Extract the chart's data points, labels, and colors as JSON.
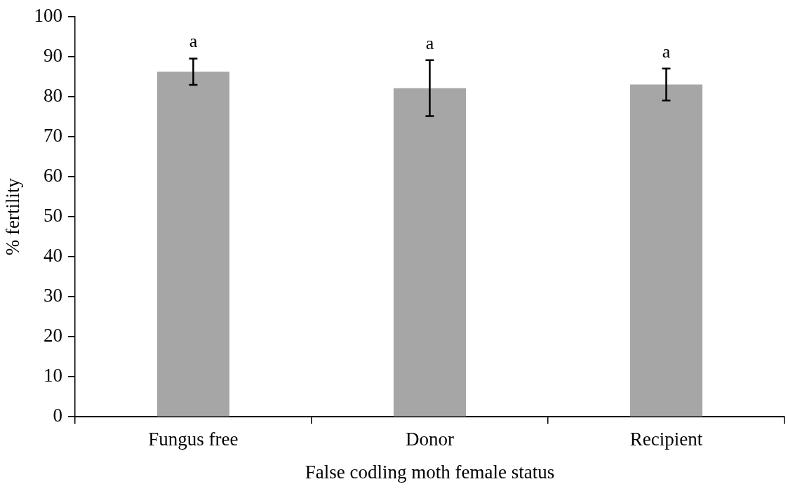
{
  "chart_data": {
    "type": "bar",
    "xlabel": "False codling moth female status",
    "ylabel": "% fertility",
    "categories": [
      "Fungus free",
      "Donor",
      "Recipient"
    ],
    "values": [
      86.3,
      82.2,
      83.1
    ],
    "errors": [
      3.3,
      7,
      4
    ],
    "color": "#a6a6a6",
    "ylim": [
      0,
      100
    ],
    "yticks": [
      0,
      10,
      20,
      30,
      40,
      50,
      60,
      70,
      80,
      90,
      100
    ],
    "grid": false,
    "legend": false,
    "annotations": [
      "a",
      "a",
      "a"
    ]
  }
}
